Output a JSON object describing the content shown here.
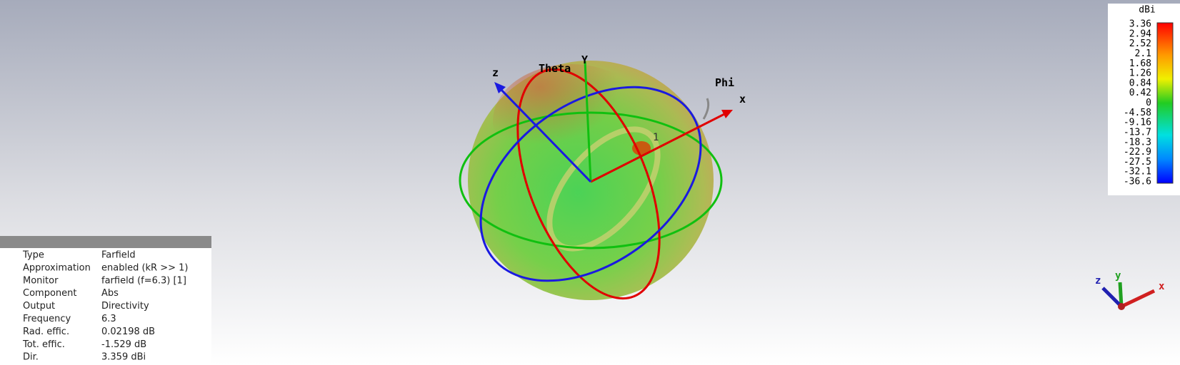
{
  "scene": {
    "axis_labels": {
      "theta": "Theta",
      "phi": "Phi",
      "x": "x",
      "y": "Y",
      "z": "z"
    },
    "port_label": "1"
  },
  "colorbar": {
    "unit": "dBi",
    "ticks": [
      "3.36",
      "2.94",
      "2.52",
      "2.1",
      "1.68",
      "1.26",
      "0.84",
      "0.42",
      "0",
      "-4.58",
      "-9.16",
      "-13.7",
      "-18.3",
      "-22.9",
      "-27.5",
      "-32.1",
      "-36.6"
    ]
  },
  "info": {
    "rows": [
      {
        "label": "Type",
        "value": "Farfield"
      },
      {
        "label": "Approximation",
        "value": "enabled (kR >> 1)"
      },
      {
        "label": "Monitor",
        "value": "farfield (f=6.3) [1]"
      },
      {
        "label": "Component",
        "value": "Abs"
      },
      {
        "label": "Output",
        "value": "Directivity"
      },
      {
        "label": "Frequency",
        "value": "6.3"
      },
      {
        "label": "Rad. effic.",
        "value": "0.02198 dB"
      },
      {
        "label": "Tot. effic.",
        "value": "-1.529 dB"
      },
      {
        "label": "Dir.",
        "value": "3.359 dBi"
      }
    ]
  },
  "triad": {
    "x": "x",
    "y": "y",
    "z": "z"
  }
}
